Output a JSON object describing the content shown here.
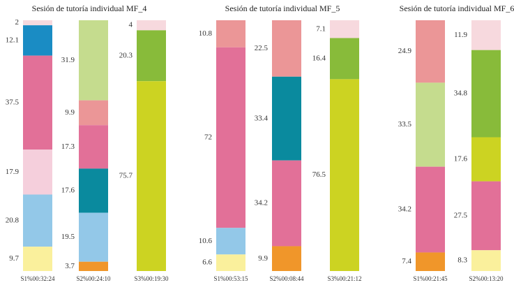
{
  "chart_data": [
    {
      "type": "stacked-bar",
      "title": "Sesión de tutoría individual MF_4",
      "categories": [
        "S1%00:32:24",
        "S2%00:24:10",
        "S3%00:19:30"
      ],
      "stacks": [
        {
          "values": [
            2,
            12.1,
            37.5,
            17.9,
            20.8,
            9.7
          ],
          "colors": [
            "#f7d9de",
            "#1a8cc4",
            "#e27098",
            "#f5cfdc",
            "#93c8e8",
            "#faf09c"
          ]
        },
        {
          "values": [
            31.9,
            9.9,
            17.3,
            17.6,
            19.5,
            3.7
          ],
          "colors": [
            "#c5dc8e",
            "#eb9697",
            "#e27098",
            "#0a8a9e",
            "#93c8e8",
            "#f0962a"
          ]
        },
        {
          "values": [
            4,
            20.3,
            75.7
          ],
          "colors": [
            "#f7d9de",
            "#88bb3a",
            "#ccd322"
          ]
        }
      ]
    },
    {
      "type": "stacked-bar",
      "title": "Sesión de tutoría individual MF_5",
      "categories": [
        "S1%00:53:15",
        "S2%00:08:44",
        "S3%00:21:12"
      ],
      "stacks": [
        {
          "values": [
            10.8,
            72,
            10.6,
            6.6
          ],
          "colors": [
            "#eb9697",
            "#e27098",
            "#93c8e8",
            "#faf09c"
          ]
        },
        {
          "values": [
            22.5,
            33.4,
            34.2,
            9.9
          ],
          "colors": [
            "#eb9697",
            "#0a8a9e",
            "#e27098",
            "#f0962a"
          ]
        },
        {
          "values": [
            7.1,
            16.4,
            76.5
          ],
          "colors": [
            "#f7d9de",
            "#88bb3a",
            "#ccd322"
          ]
        }
      ]
    },
    {
      "type": "stacked-bar",
      "title": "Sesión de tutoría individual MF_6",
      "categories": [
        "S1%00:21:45",
        "S2%00:13:20"
      ],
      "stacks": [
        {
          "values": [
            24.9,
            33.5,
            34.2,
            7.4
          ],
          "colors": [
            "#eb9697",
            "#c5dc8e",
            "#e27098",
            "#f0962a"
          ]
        },
        {
          "values": [
            11.9,
            34.8,
            17.6,
            27.5,
            8.3
          ],
          "colors": [
            "#f7d9de",
            "#88bb3a",
            "#ccd322",
            "#e27098",
            "#faf09c"
          ]
        }
      ]
    }
  ]
}
